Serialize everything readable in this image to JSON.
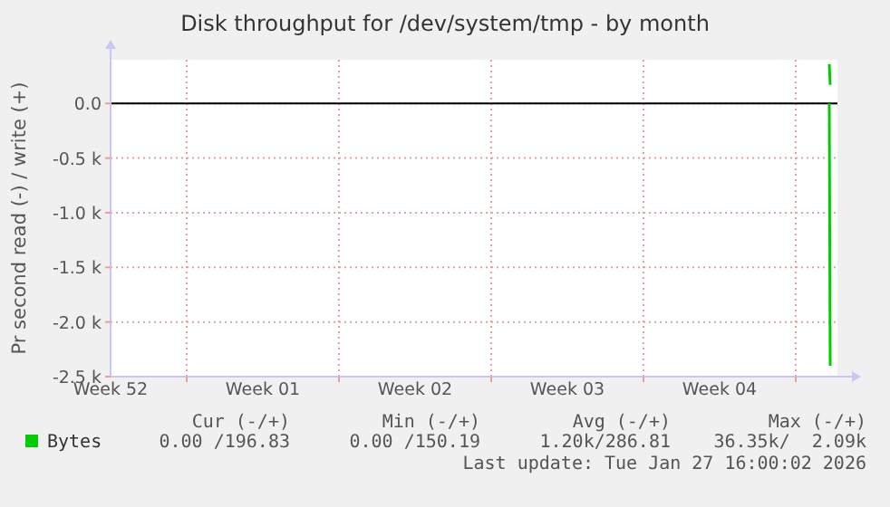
{
  "chart_data": {
    "type": "line",
    "title": "Disk throughput for /dev/system/tmp - by month",
    "ylabel": "Pr second read (-) / write (+)",
    "xlim": [
      "2025-12-25T12:00",
      "2026-01-27T22:00"
    ],
    "xticks": [
      {
        "value": "2025-12-25T12:00",
        "label": "Week 52"
      },
      {
        "value": "2025-12-29",
        "label": null
      },
      {
        "value": "2026-01-01T12:00",
        "label": "Week 01"
      },
      {
        "value": "2026-01-05",
        "label": null
      },
      {
        "value": "2026-01-08T12:00",
        "label": "Week 02"
      },
      {
        "value": "2026-01-12",
        "label": null
      },
      {
        "value": "2026-01-15T12:00",
        "label": "Week 03"
      },
      {
        "value": "2026-01-19",
        "label": null
      },
      {
        "value": "2026-01-22T12:00",
        "label": "Week 04"
      },
      {
        "value": "2026-01-26",
        "label": null
      }
    ],
    "ylim": [
      -2500,
      400
    ],
    "yticks": [
      {
        "value": 0,
        "label": "0.0"
      },
      {
        "value": -500,
        "label": "-0.5 k"
      },
      {
        "value": -1000,
        "label": "-1.0 k"
      },
      {
        "value": -1500,
        "label": "-1.5 k"
      },
      {
        "value": -2000,
        "label": "-2.0 k"
      },
      {
        "value": -2500,
        "label": "-2.5 k"
      }
    ],
    "grid": true,
    "legend": "bottom left",
    "series": [
      {
        "name": "Bytes",
        "color": "#00cc00",
        "x": [
          "2026-01-27T13:00",
          "2026-01-27T14:00"
        ],
        "values": [
          360,
          170
        ]
      },
      {
        "color": "#00cc00",
        "x": [
          "2026-01-27T13:00",
          "2026-01-27T14:00"
        ],
        "values": [
          0,
          -2400
        ]
      }
    ],
    "ref_lines": [
      {
        "axis": "y",
        "value": 0,
        "color": "#000000"
      }
    ],
    "annotations": [
      "Cur (-/+)",
      "Min (-/+)",
      "Avg (-/+)",
      "Max (-/+)",
      "0.00 /196.83",
      "0.00 /150.19",
      "1.20k/286.81",
      "36.35k/  2.09k",
      "Last update: Tue Jan 27 16:00:02 2026"
    ]
  }
}
